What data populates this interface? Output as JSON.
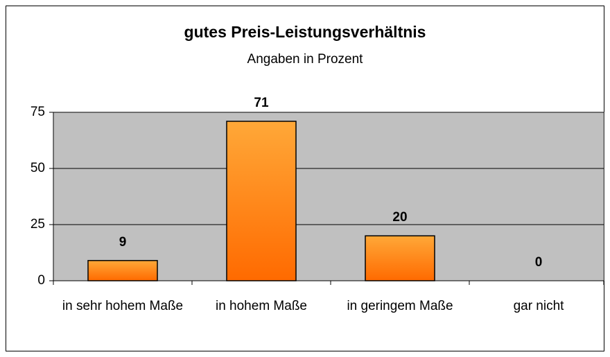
{
  "chart_data": {
    "type": "bar",
    "title": "gutes Preis-Leistungsverhältnis",
    "subtitle": "Angaben in Prozent",
    "categories": [
      "in sehr hohem Maße",
      "in hohem Maße",
      "in geringem Maße",
      "gar nicht"
    ],
    "values": [
      9,
      71,
      20,
      0
    ],
    "color": "#ff7a10",
    "ylim": [
      0,
      75
    ],
    "yticks": [
      0,
      25,
      50,
      75
    ],
    "grid": true
  }
}
